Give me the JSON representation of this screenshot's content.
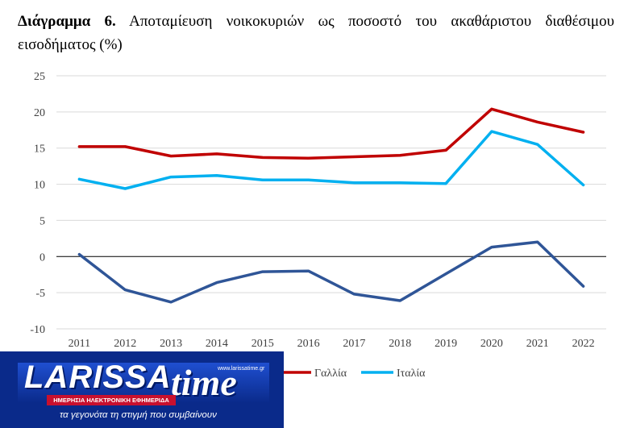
{
  "title": {
    "prefix": "Διάγραμμα 6.",
    "text": "Αποταμίευση νοικοκυριών ως ποσοστό του ακαθάριστου διαθέσιμου εισοδήματος (%)"
  },
  "chart_data": {
    "type": "line",
    "title": "Διάγραμμα 6. Αποταμίευση νοικοκυριών ως ποσοστό του ακαθάριστου διαθέσιμου εισοδήματος (%)",
    "x": [
      "2011",
      "2012",
      "2013",
      "2014",
      "2015",
      "2016",
      "2017",
      "2018",
      "2019",
      "2020",
      "2021",
      "2022"
    ],
    "ylim": [
      -10,
      25
    ],
    "yticks": [
      25,
      20,
      15,
      10,
      5,
      0,
      -5,
      -10
    ],
    "grid": true,
    "series": [
      {
        "name": "",
        "color": "#2f5597",
        "values": [
          0.3,
          -4.6,
          -6.3,
          -3.6,
          -2.1,
          -2.0,
          -5.2,
          -6.1,
          -2.4,
          1.3,
          2.0,
          -4.1
        ]
      },
      {
        "name": "Γαλλία",
        "color": "#c00000",
        "values": [
          15.2,
          15.2,
          13.9,
          14.2,
          13.7,
          13.6,
          13.8,
          14.0,
          14.7,
          20.4,
          18.6,
          17.2
        ]
      },
      {
        "name": "Ιταλία",
        "color": "#00b0f0",
        "values": [
          10.7,
          9.4,
          11.0,
          11.2,
          10.6,
          10.6,
          10.2,
          10.2,
          10.1,
          17.3,
          15.5,
          9.9
        ]
      }
    ],
    "legend": "bottom"
  },
  "logo": {
    "brand_main": "LARISSA",
    "brand_time": "time",
    "url": "www.larissatime.gr",
    "band": "ΗΜΕΡΗΣΙΑ ΗΛΕΚΤΡΟΝΙΚΗ ΕΦΗΜΕΡΙΔΑ",
    "tagline": "τα γεγονότα τη στιγμή που συμβαίνουν"
  }
}
